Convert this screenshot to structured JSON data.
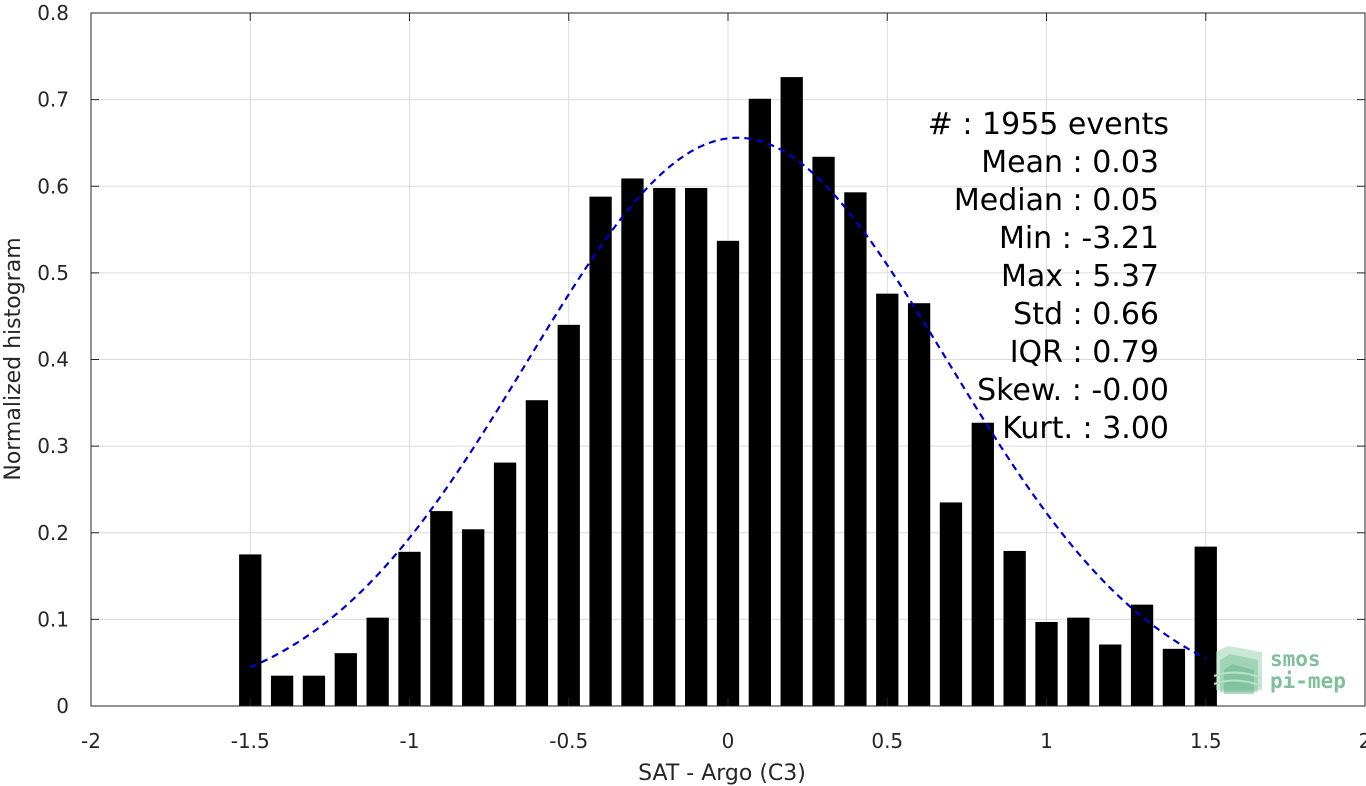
{
  "chart_data": {
    "type": "bar",
    "xlabel": "SAT - Argo (C3)",
    "ylabel": "Normalized histogram",
    "xlim": [
      -2,
      2
    ],
    "ylim": [
      0,
      0.8
    ],
    "grid": true,
    "x_ticks": [
      "-2",
      "-1.5",
      "-1",
      "-0.5",
      "0",
      "0.5",
      "1",
      "1.5",
      "2"
    ],
    "y_ticks": [
      "0",
      "0.1",
      "0.2",
      "0.3",
      "0.4",
      "0.5",
      "0.6",
      "0.7",
      "0.8"
    ],
    "bar_color": "#000000",
    "bins": {
      "x": [
        -1.5,
        -1.4,
        -1.3,
        -1.2,
        -1.1,
        -1.0,
        -0.9,
        -0.8,
        -0.7,
        -0.6,
        -0.5,
        -0.4,
        -0.3,
        -0.2,
        -0.1,
        0.0,
        0.1,
        0.2,
        0.3,
        0.4,
        0.5,
        0.6,
        0.7,
        0.8,
        0.9,
        1.0,
        1.1,
        1.2,
        1.3,
        1.4,
        1.5
      ],
      "values": [
        0.175,
        0.035,
        0.035,
        0.061,
        0.102,
        0.178,
        0.225,
        0.204,
        0.281,
        0.353,
        0.44,
        0.588,
        0.609,
        0.598,
        0.598,
        0.537,
        0.701,
        0.726,
        0.634,
        0.593,
        0.476,
        0.465,
        0.235,
        0.327,
        0.179,
        0.097,
        0.102,
        0.071,
        0.117,
        0.066,
        0.184
      ]
    },
    "fit_curve": {
      "type": "normal",
      "mean": 0.03,
      "std": 0.66,
      "color": "#0000cc",
      "style": "dashed",
      "x_range": [
        -1.5,
        1.5
      ]
    },
    "stats": {
      "count_label": "#  : 1955 events",
      "lines": [
        {
          "label": "Mean",
          "value": "0.03"
        },
        {
          "label": "Median",
          "value": "0.05"
        },
        {
          "label": "Min",
          "value": "-3.21"
        },
        {
          "label": "Max",
          "value": "5.37"
        },
        {
          "label": "Std",
          "value": "0.66"
        },
        {
          "label": "IQR",
          "value": "0.79"
        },
        {
          "label": "Skew.",
          "value": "-0.00"
        },
        {
          "label": "Kurt.",
          "value": "3.00"
        }
      ]
    }
  },
  "logo": {
    "line1": "smos",
    "line2": "pi-mep",
    "color": "#7fbf9b"
  }
}
